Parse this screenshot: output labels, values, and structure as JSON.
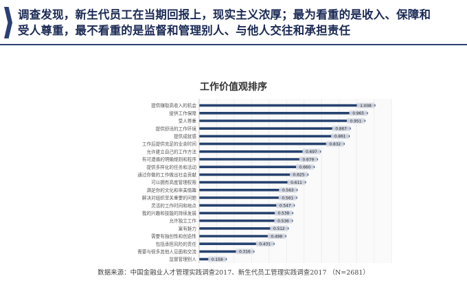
{
  "header": {
    "line1": "调查发现，新生代员工在当期回报上，现实主义浓厚；最为看重的是收入、保障和",
    "line2": "受人尊重，最不看重的是监督和管理别人、与他人交往和承担责任"
  },
  "colors": {
    "bar": "#26426f",
    "accent": "#2a3f73",
    "grid": "#eaeaea",
    "label_box": "#d9dde5"
  },
  "chart_data": {
    "type": "bar",
    "orientation": "horizontal",
    "title": "工作价值观排序",
    "categories": [
      "提供赚取高收入的机会",
      "提供工作保障",
      "受人尊重",
      "提供舒适的工作环境",
      "提供成就感",
      "工作后提供充足的业余时间",
      "允许建立自己的工作方法",
      "有可遵循的明确规则和程序",
      "提供多样化的任务和活动",
      "通过你做的工作做出社会贡献",
      "可以拥有高度管理权限",
      "满足你的文化和审美情趣",
      "解决对组织至关重要的问题",
      "灵活的工作时间和地点",
      "我的兴趣和技能的持续发展",
      "允许独立工作",
      "富有魅力",
      "需要有独创性和创造性",
      "包括承担风险的责任",
      "需要与很多其他人见面和交流",
      "监督管理别人"
    ],
    "values": [
      1.008,
      0.965,
      0.951,
      0.867,
      0.861,
      0.832,
      0.697,
      0.679,
      0.66,
      0.625,
      0.611,
      0.563,
      0.561,
      0.547,
      0.538,
      0.536,
      0.512,
      0.498,
      0.431,
      0.316,
      0.158
    ],
    "value_labels": [
      "1.008",
      "0.965",
      "0.951",
      "0.867",
      "0.861",
      "0.832",
      "0.697",
      "0.679",
      "0.660",
      "0.625",
      "0.611",
      "0.563",
      "0.561",
      "0.547",
      "0.538",
      "0.536",
      "0.512",
      "0.498",
      "0.431",
      "0.316",
      "0.158"
    ],
    "xlim": [
      0,
      1.1
    ],
    "grid": true,
    "legend": "none"
  },
  "source": "数据来源：中国金融业人才管理实践调查2017、新生代员工管理实践调查2017 （N=2681）"
}
